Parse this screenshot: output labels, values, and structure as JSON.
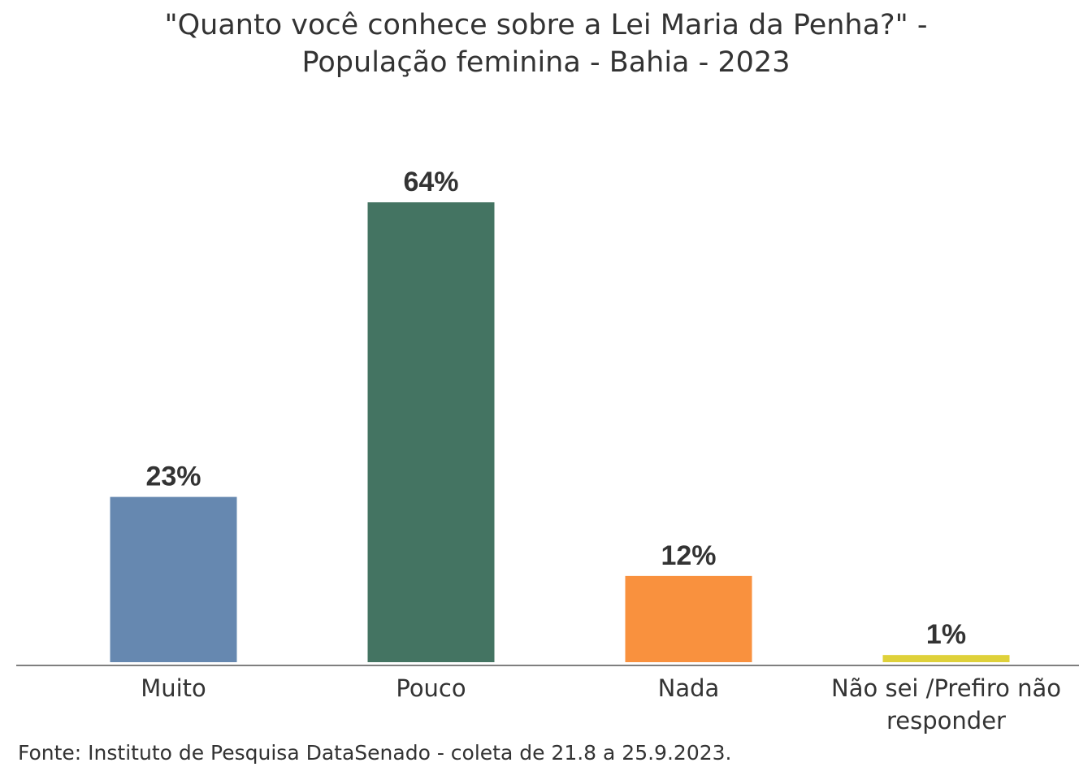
{
  "chart_data": {
    "type": "bar",
    "title": [
      "\"Quanto você conhece sobre a Lei Maria da Penha?\" -",
      "População feminina - Bahia - 2023"
    ],
    "categories": [
      [
        "Muito"
      ],
      [
        "Pouco"
      ],
      [
        "Nada"
      ],
      [
        "Não sei /Prefiro não",
        "responder"
      ]
    ],
    "values": [
      23,
      64,
      12,
      1
    ],
    "data_labels": [
      "23%",
      "64%",
      "12%",
      "1%"
    ],
    "colors": [
      "#6688b0",
      "#447462",
      "#f9913e",
      "#dfd13a"
    ],
    "ylim": [
      0,
      100
    ],
    "grid": false,
    "legend": "none",
    "source": "Fonte: Instituto de Pesquisa DataSenado - coleta de 21.8 a 25.9.2023."
  }
}
